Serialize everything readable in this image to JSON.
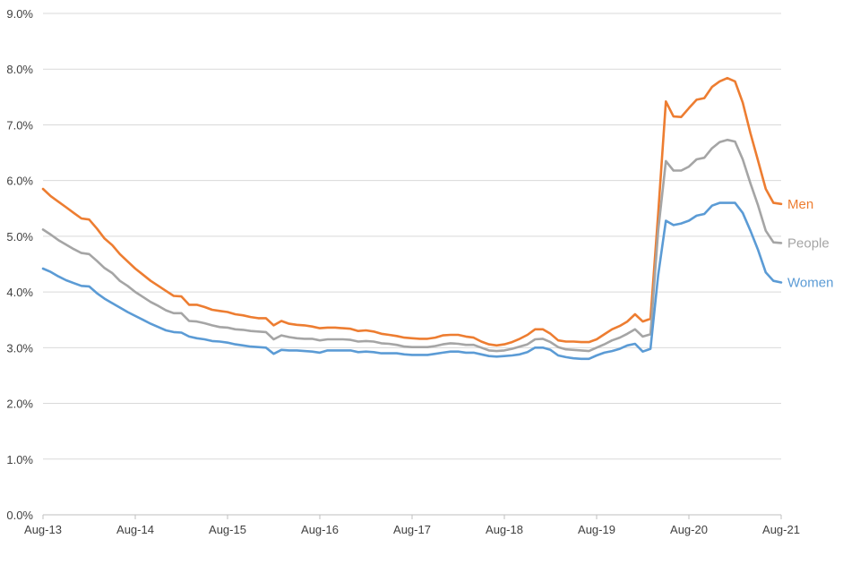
{
  "chart_data": {
    "type": "line",
    "title": "",
    "xlabel": "",
    "ylabel": "",
    "ylim": [
      0,
      9
    ],
    "y_ticks": [
      "0.0%",
      "1.0%",
      "2.0%",
      "3.0%",
      "4.0%",
      "5.0%",
      "6.0%",
      "7.0%",
      "8.0%",
      "9.0%"
    ],
    "x_ticks": [
      "Aug-13",
      "Aug-14",
      "Aug-15",
      "Aug-16",
      "Aug-17",
      "Aug-18",
      "Aug-19",
      "Aug-20",
      "Aug-21"
    ],
    "grid": "horizontal",
    "legend": "direct labels at line ends",
    "x": [
      "Aug-13",
      "Sep-13",
      "Oct-13",
      "Nov-13",
      "Dec-13",
      "Jan-14",
      "Feb-14",
      "Mar-14",
      "Apr-14",
      "May-14",
      "Jun-14",
      "Jul-14",
      "Aug-14",
      "Sep-14",
      "Oct-14",
      "Nov-14",
      "Dec-14",
      "Jan-15",
      "Feb-15",
      "Mar-15",
      "Apr-15",
      "May-15",
      "Jun-15",
      "Jul-15",
      "Aug-15",
      "Sep-15",
      "Oct-15",
      "Nov-15",
      "Dec-15",
      "Jan-16",
      "Feb-16",
      "Mar-16",
      "Apr-16",
      "May-16",
      "Jun-16",
      "Jul-16",
      "Aug-16",
      "Sep-16",
      "Oct-16",
      "Nov-16",
      "Dec-16",
      "Jan-17",
      "Feb-17",
      "Mar-17",
      "Apr-17",
      "May-17",
      "Jun-17",
      "Jul-17",
      "Aug-17",
      "Sep-17",
      "Oct-17",
      "Nov-17",
      "Dec-17",
      "Jan-18",
      "Feb-18",
      "Mar-18",
      "Apr-18",
      "May-18",
      "Jun-18",
      "Jul-18",
      "Aug-18",
      "Sep-18",
      "Oct-18",
      "Nov-18",
      "Dec-18",
      "Jan-19",
      "Feb-19",
      "Mar-19",
      "Apr-19",
      "May-19",
      "Jun-19",
      "Jul-19",
      "Aug-19",
      "Sep-19",
      "Oct-19",
      "Nov-19",
      "Dec-19",
      "Jan-20",
      "Feb-20",
      "Mar-20",
      "Apr-20",
      "May-20",
      "Jun-20",
      "Jul-20",
      "Aug-20",
      "Sep-20",
      "Oct-20",
      "Nov-20",
      "Dec-20",
      "Jan-21",
      "Feb-21",
      "Mar-21",
      "Apr-21",
      "May-21",
      "Jun-21",
      "Jul-21",
      "Aug-21"
    ],
    "series": [
      {
        "name": "Men",
        "color": "#ED7D31",
        "values": [
          5.85,
          5.72,
          5.62,
          5.52,
          5.42,
          5.32,
          5.3,
          5.14,
          4.96,
          4.84,
          4.68,
          4.55,
          4.42,
          4.31,
          4.2,
          4.11,
          4.02,
          3.93,
          3.92,
          3.77,
          3.77,
          3.73,
          3.68,
          3.66,
          3.64,
          3.6,
          3.58,
          3.55,
          3.53,
          3.53,
          3.4,
          3.48,
          3.43,
          3.41,
          3.4,
          3.38,
          3.35,
          3.36,
          3.36,
          3.35,
          3.34,
          3.3,
          3.31,
          3.29,
          3.25,
          3.23,
          3.21,
          3.18,
          3.17,
          3.16,
          3.16,
          3.18,
          3.22,
          3.23,
          3.23,
          3.2,
          3.18,
          3.11,
          3.06,
          3.04,
          3.06,
          3.1,
          3.16,
          3.23,
          3.33,
          3.33,
          3.25,
          3.13,
          3.11,
          3.11,
          3.1,
          3.1,
          3.15,
          3.24,
          3.33,
          3.39,
          3.47,
          3.6,
          3.47,
          3.52,
          5.4,
          7.42,
          7.15,
          7.14,
          7.3,
          7.45,
          7.48,
          7.68,
          7.78,
          7.84,
          7.78,
          7.4,
          6.85,
          6.35,
          5.85,
          5.6,
          5.58
        ]
      },
      {
        "name": "People",
        "color": "#A5A5A5",
        "values": [
          5.12,
          5.03,
          4.93,
          4.85,
          4.77,
          4.7,
          4.68,
          4.56,
          4.43,
          4.34,
          4.2,
          4.11,
          4.0,
          3.91,
          3.82,
          3.75,
          3.67,
          3.62,
          3.62,
          3.48,
          3.47,
          3.44,
          3.4,
          3.37,
          3.36,
          3.33,
          3.32,
          3.3,
          3.29,
          3.28,
          3.15,
          3.22,
          3.19,
          3.17,
          3.16,
          3.16,
          3.13,
          3.15,
          3.15,
          3.15,
          3.14,
          3.11,
          3.12,
          3.11,
          3.08,
          3.07,
          3.05,
          3.02,
          3.01,
          3.01,
          3.01,
          3.03,
          3.06,
          3.08,
          3.07,
          3.05,
          3.05,
          3.0,
          2.95,
          2.94,
          2.95,
          2.98,
          3.02,
          3.06,
          3.15,
          3.16,
          3.1,
          3.01,
          2.97,
          2.96,
          2.95,
          2.94,
          3.0,
          3.06,
          3.13,
          3.18,
          3.25,
          3.33,
          3.2,
          3.24,
          5.1,
          6.35,
          6.18,
          6.18,
          6.25,
          6.38,
          6.41,
          6.58,
          6.69,
          6.73,
          6.7,
          6.38,
          5.95,
          5.55,
          5.1,
          4.89,
          4.88
        ]
      },
      {
        "name": "Women",
        "color": "#5B9BD5",
        "values": [
          4.42,
          4.36,
          4.28,
          4.21,
          4.16,
          4.11,
          4.1,
          3.98,
          3.88,
          3.8,
          3.72,
          3.64,
          3.57,
          3.5,
          3.43,
          3.37,
          3.31,
          3.28,
          3.27,
          3.2,
          3.17,
          3.15,
          3.12,
          3.11,
          3.09,
          3.06,
          3.04,
          3.02,
          3.01,
          3.0,
          2.89,
          2.96,
          2.95,
          2.95,
          2.94,
          2.93,
          2.91,
          2.95,
          2.95,
          2.95,
          2.95,
          2.92,
          2.93,
          2.92,
          2.9,
          2.9,
          2.9,
          2.88,
          2.87,
          2.87,
          2.87,
          2.89,
          2.91,
          2.93,
          2.93,
          2.91,
          2.91,
          2.88,
          2.85,
          2.84,
          2.85,
          2.86,
          2.88,
          2.92,
          3.0,
          3.0,
          2.96,
          2.86,
          2.83,
          2.81,
          2.8,
          2.8,
          2.86,
          2.91,
          2.94,
          2.98,
          3.04,
          3.07,
          2.93,
          2.98,
          4.3,
          5.28,
          5.2,
          5.23,
          5.28,
          5.37,
          5.4,
          5.55,
          5.6,
          5.6,
          5.6,
          5.42,
          5.1,
          4.75,
          4.35,
          4.2,
          4.17
        ]
      }
    ]
  }
}
